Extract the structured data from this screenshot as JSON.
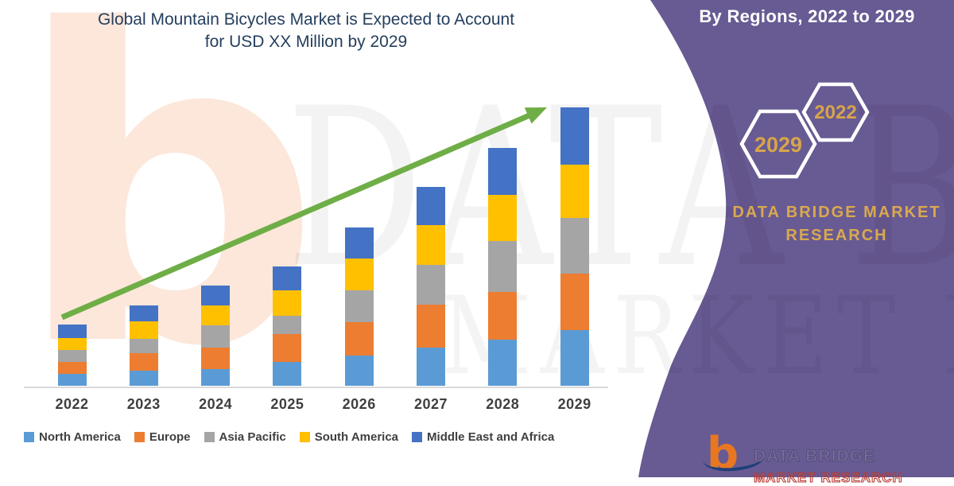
{
  "header": {
    "title_line1": "Global Mountain Bicycles Market is Expected to Account",
    "title_line2": "for USD XX Million by 2029"
  },
  "side_panel": {
    "heading": "By Regions, 2022 to 2029",
    "hexagons": [
      {
        "label": "2029"
      },
      {
        "label": "2022"
      }
    ],
    "brand_line1": "DATA BRIDGE MARKET",
    "brand_line2": "RESEARCH",
    "colors": {
      "panel": "#685a93",
      "gold": "#d9a94f",
      "hex_stroke": "#ffffff"
    }
  },
  "footer_logo": {
    "b_glyph": "b",
    "brand": "DATA BRIDGE",
    "sub_brand": "MARKET RESEARCH"
  },
  "watermark": {
    "big_letter": "b",
    "row1": "DATA BRI",
    "row2": "MARKET RE"
  },
  "chart_data": {
    "type": "bar",
    "stacked": true,
    "title": "Global Mountain Bicycles Market is Expected to Account for USD XX Million by 2029",
    "categories": [
      "2022",
      "2023",
      "2024",
      "2025",
      "2026",
      "2027",
      "2028",
      "2029"
    ],
    "series": [
      {
        "name": "North America",
        "color": "#5B9BD5",
        "values": [
          15,
          19,
          21,
          30,
          38,
          48,
          58,
          70
        ]
      },
      {
        "name": "Europe",
        "color": "#ED7D31",
        "values": [
          15,
          22,
          27,
          35,
          42,
          54,
          60,
          71
        ]
      },
      {
        "name": "Asia Pacific",
        "color": "#A5A5A5",
        "values": [
          15,
          18,
          28,
          23,
          40,
          50,
          64,
          70
        ]
      },
      {
        "name": "South America",
        "color": "#FFC000",
        "values": [
          15,
          22,
          25,
          32,
          40,
          50,
          58,
          67
        ]
      },
      {
        "name": "Middle East and Africa",
        "color": "#4472C4",
        "values": [
          17,
          20,
          25,
          30,
          39,
          48,
          59,
          72
        ]
      }
    ],
    "xlabel": "",
    "ylabel": "",
    "value_axis_labels": "none (values shown as XX Million)",
    "values_unit": "relative estimate (pixel-proportional)",
    "grid": false,
    "legend_position": "bottom",
    "trend_arrow": {
      "direction": "up",
      "from_year": "2022",
      "to_year": "2029",
      "color": "#6fae47"
    }
  }
}
